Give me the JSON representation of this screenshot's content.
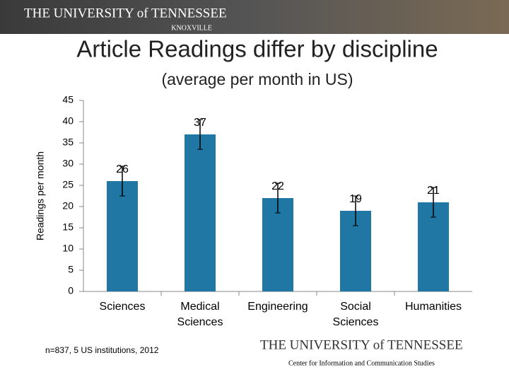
{
  "header": {
    "university": "THE UNIVERSITY of TENNESSEE",
    "campus": "KNOXVILLE"
  },
  "chart_data": {
    "type": "bar",
    "title": "Article Readings differ by discipline",
    "subtitle": "(average per month in US)",
    "y_label": "Readings per month",
    "categories": [
      "Sciences",
      "Medical Sciences",
      "Engineering",
      "Social Sciences",
      "Humanities"
    ],
    "values": [
      26,
      37,
      22,
      19,
      21
    ],
    "errors": [
      3.5,
      3.5,
      3.5,
      3.5,
      3.5
    ],
    "color": "#2177a4",
    "ylim": [
      0,
      45
    ],
    "yticks": [
      0,
      5,
      10,
      15,
      20,
      25,
      30,
      35,
      40,
      45
    ],
    "grid": false
  },
  "footnote": "n=837, 5 US institutions, 2012",
  "footer": {
    "university": "THE UNIVERSITY of TENNESSEE",
    "center": "Center for Information and Communication Studies"
  }
}
